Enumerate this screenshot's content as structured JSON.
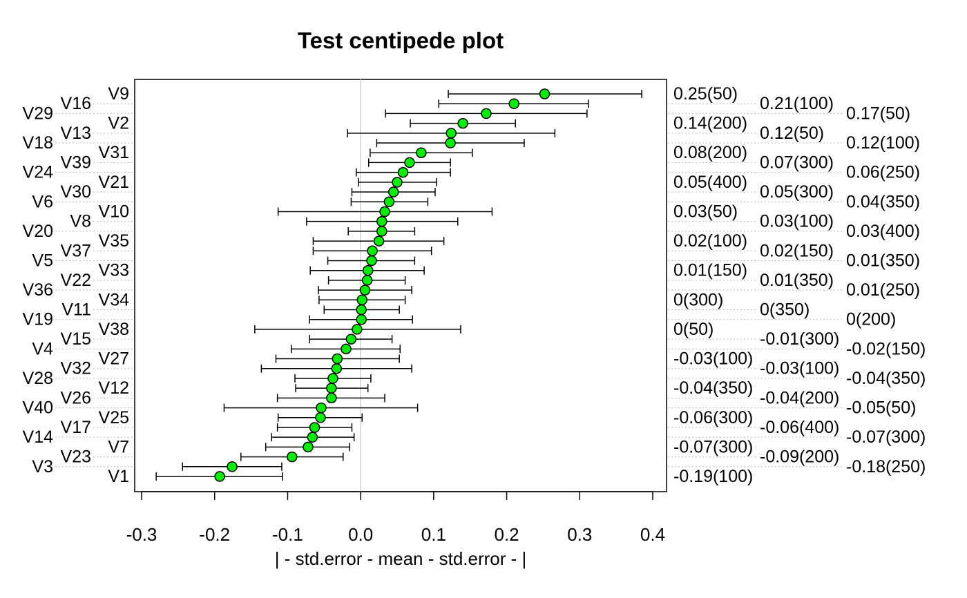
{
  "chart_data": {
    "type": "centipede",
    "title": "Test centipede plot",
    "xlabel": "| - std.error - mean - std.error - |",
    "xlim": [
      -0.3,
      0.4
    ],
    "xticks": [
      "-0.3",
      "-0.2",
      "-0.1",
      "0.0",
      "0.1",
      "0.2",
      "0.3",
      "0.4"
    ],
    "xtick_values": [
      -0.3,
      -0.2,
      -0.1,
      0.0,
      0.1,
      0.2,
      0.3,
      0.4
    ],
    "reference_line": 0,
    "point_color": "#00ee00",
    "rows": [
      {
        "name": "V9",
        "mean": 0.252,
        "lo": 0.12,
        "hi": 0.385,
        "right": "0.25(50)"
      },
      {
        "name": "V16",
        "mean": 0.21,
        "lo": 0.107,
        "hi": 0.312,
        "right": "0.21(100)"
      },
      {
        "name": "V29",
        "mean": 0.172,
        "lo": 0.034,
        "hi": 0.31,
        "right": "0.17(50)"
      },
      {
        "name": "V2",
        "mean": 0.14,
        "lo": 0.068,
        "hi": 0.212,
        "right": "0.14(200)"
      },
      {
        "name": "V13",
        "mean": 0.124,
        "lo": -0.018,
        "hi": 0.266,
        "right": "0.12(50)"
      },
      {
        "name": "V18",
        "mean": 0.123,
        "lo": 0.022,
        "hi": 0.224,
        "right": "0.12(100)"
      },
      {
        "name": "V31",
        "mean": 0.083,
        "lo": 0.013,
        "hi": 0.153,
        "right": "0.08(200)"
      },
      {
        "name": "V39",
        "mean": 0.067,
        "lo": 0.011,
        "hi": 0.123,
        "right": "0.07(300)"
      },
      {
        "name": "V24",
        "mean": 0.058,
        "lo": -0.006,
        "hi": 0.123,
        "right": "0.06(250)"
      },
      {
        "name": "V21",
        "mean": 0.05,
        "lo": -0.003,
        "hi": 0.104,
        "right": "0.05(400)"
      },
      {
        "name": "V30",
        "mean": 0.045,
        "lo": -0.012,
        "hi": 0.102,
        "right": "0.05(300)"
      },
      {
        "name": "V6",
        "mean": 0.039,
        "lo": -0.013,
        "hi": 0.092,
        "right": "0.04(350)"
      },
      {
        "name": "V10",
        "mean": 0.033,
        "lo": -0.113,
        "hi": 0.18,
        "right": "0.03(50)"
      },
      {
        "name": "V8",
        "mean": 0.029,
        "lo": -0.074,
        "hi": 0.133,
        "right": "0.03(100)"
      },
      {
        "name": "V20",
        "mean": 0.029,
        "lo": -0.017,
        "hi": 0.074,
        "right": "0.03(400)"
      },
      {
        "name": "V35",
        "mean": 0.025,
        "lo": -0.065,
        "hi": 0.114,
        "right": "0.02(100)"
      },
      {
        "name": "V37",
        "mean": 0.016,
        "lo": -0.065,
        "hi": 0.097,
        "right": "0.02(150)"
      },
      {
        "name": "V5",
        "mean": 0.015,
        "lo": -0.045,
        "hi": 0.074,
        "right": "0.01(350)"
      },
      {
        "name": "V33",
        "mean": 0.01,
        "lo": -0.069,
        "hi": 0.087,
        "right": "0.01(150)"
      },
      {
        "name": "V22",
        "mean": 0.009,
        "lo": -0.044,
        "hi": 0.061,
        "right": "0.01(350)"
      },
      {
        "name": "V36",
        "mean": 0.006,
        "lo": -0.058,
        "hi": 0.07,
        "right": "0.01(250)"
      },
      {
        "name": "V34",
        "mean": 0.002,
        "lo": -0.057,
        "hi": 0.061,
        "right": "0(300)"
      },
      {
        "name": "V11",
        "mean": 0.001,
        "lo": -0.05,
        "hi": 0.053,
        "right": "0(350)"
      },
      {
        "name": "V19",
        "mean": 0.001,
        "lo": -0.07,
        "hi": 0.071,
        "right": "0(200)"
      },
      {
        "name": "V38",
        "mean": -0.005,
        "lo": -0.145,
        "hi": 0.137,
        "right": "0(50)"
      },
      {
        "name": "V15",
        "mean": -0.013,
        "lo": -0.07,
        "hi": 0.043,
        "right": "-0.01(300)"
      },
      {
        "name": "V4",
        "mean": -0.02,
        "lo": -0.095,
        "hi": 0.054,
        "right": "-0.02(150)"
      },
      {
        "name": "V27",
        "mean": -0.032,
        "lo": -0.116,
        "hi": 0.053,
        "right": "-0.03(100)"
      },
      {
        "name": "V32",
        "mean": -0.033,
        "lo": -0.136,
        "hi": 0.07,
        "right": "-0.03(100)"
      },
      {
        "name": "V28",
        "mean": -0.038,
        "lo": -0.09,
        "hi": 0.014,
        "right": "-0.04(350)"
      },
      {
        "name": "V12",
        "mean": -0.04,
        "lo": -0.089,
        "hi": 0.01,
        "right": "-0.04(350)"
      },
      {
        "name": "V26",
        "mean": -0.04,
        "lo": -0.114,
        "hi": 0.033,
        "right": "-0.04(200)"
      },
      {
        "name": "V40",
        "mean": -0.054,
        "lo": -0.187,
        "hi": 0.078,
        "right": "-0.05(50)"
      },
      {
        "name": "V25",
        "mean": -0.055,
        "lo": -0.113,
        "hi": 0.002,
        "right": "-0.06(300)"
      },
      {
        "name": "V17",
        "mean": -0.063,
        "lo": -0.114,
        "hi": -0.012,
        "right": "-0.06(400)"
      },
      {
        "name": "V14",
        "mean": -0.066,
        "lo": -0.122,
        "hi": -0.009,
        "right": "-0.07(300)"
      },
      {
        "name": "V7",
        "mean": -0.072,
        "lo": -0.13,
        "hi": -0.015,
        "right": "-0.07(300)"
      },
      {
        "name": "V23",
        "mean": -0.094,
        "lo": -0.164,
        "hi": -0.024,
        "right": "-0.09(200)"
      },
      {
        "name": "V3",
        "mean": -0.176,
        "lo": -0.244,
        "hi": -0.108,
        "right": "-0.18(250)"
      },
      {
        "name": "V1",
        "mean": -0.193,
        "lo": -0.28,
        "hi": -0.107,
        "right": "-0.19(100)"
      }
    ]
  }
}
